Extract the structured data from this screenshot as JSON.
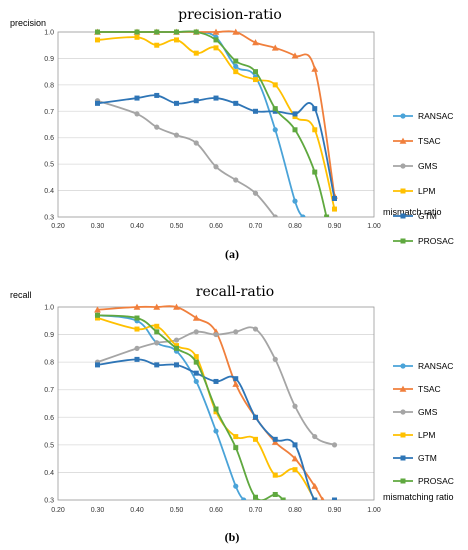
{
  "chart_data": [
    {
      "type": "line",
      "title": "precision-ratio",
      "panel_label": "(a)",
      "ylabel": "precision",
      "xlabel": "mismatch ratio",
      "xlim": [
        0.2,
        1.0
      ],
      "ylim": [
        0.3,
        1.0
      ],
      "xticks": [
        "0.20",
        "0.30",
        "0.40",
        "0.50",
        "0.60",
        "0.70",
        "0.80",
        "0.90",
        "1.00"
      ],
      "yticks": [
        "0.3",
        "0.4",
        "0.5",
        "0.6",
        "0.7",
        "0.8",
        "0.9",
        "1.0"
      ],
      "grid": "horizontal",
      "legend_position": "right",
      "series": [
        {
          "name": "RANSAC",
          "color": "#4aa3d8",
          "marker": "circle",
          "x": [
            0.3,
            0.4,
            0.45,
            0.5,
            0.55,
            0.6,
            0.65,
            0.7,
            0.75,
            0.8,
            0.82
          ],
          "y": [
            1.0,
            1.0,
            1.0,
            1.0,
            1.0,
            0.98,
            0.87,
            0.83,
            0.63,
            0.36,
            0.3
          ]
        },
        {
          "name": "TSAC",
          "color": "#f07f3c",
          "marker": "triangle",
          "x": [
            0.3,
            0.4,
            0.45,
            0.5,
            0.55,
            0.6,
            0.65,
            0.7,
            0.75,
            0.8,
            0.85,
            0.9
          ],
          "y": [
            1.0,
            1.0,
            1.0,
            1.0,
            1.0,
            1.0,
            1.0,
            0.96,
            0.94,
            0.91,
            0.86,
            0.38
          ]
        },
        {
          "name": "GMS",
          "color": "#a5a5a5",
          "marker": "circle",
          "x": [
            0.3,
            0.4,
            0.45,
            0.5,
            0.55,
            0.6,
            0.65,
            0.7,
            0.75
          ],
          "y": [
            0.74,
            0.69,
            0.64,
            0.61,
            0.58,
            0.49,
            0.44,
            0.39,
            0.3
          ]
        },
        {
          "name": "LPM",
          "color": "#ffc000",
          "marker": "square",
          "x": [
            0.3,
            0.4,
            0.45,
            0.5,
            0.55,
            0.6,
            0.65,
            0.7,
            0.75,
            0.8,
            0.85,
            0.9
          ],
          "y": [
            0.97,
            0.98,
            0.95,
            0.97,
            0.92,
            0.94,
            0.85,
            0.82,
            0.8,
            0.68,
            0.63,
            0.33
          ]
        },
        {
          "name": "GTM",
          "color": "#2e75b6",
          "marker": "square",
          "x": [
            0.3,
            0.4,
            0.45,
            0.5,
            0.55,
            0.6,
            0.65,
            0.7,
            0.75,
            0.8,
            0.85,
            0.9
          ],
          "y": [
            0.73,
            0.75,
            0.76,
            0.73,
            0.74,
            0.75,
            0.73,
            0.7,
            0.7,
            0.69,
            0.71,
            0.37
          ]
        },
        {
          "name": "PROSAC",
          "color": "#5fa83f",
          "marker": "square",
          "x": [
            0.3,
            0.4,
            0.45,
            0.5,
            0.55,
            0.6,
            0.65,
            0.7,
            0.75,
            0.8,
            0.85,
            0.88
          ],
          "y": [
            1.0,
            1.0,
            1.0,
            1.0,
            1.0,
            0.97,
            0.89,
            0.85,
            0.71,
            0.63,
            0.47,
            0.3
          ]
        }
      ]
    },
    {
      "type": "line",
      "title": "recall-ratio",
      "panel_label": "(b)",
      "ylabel": "recall",
      "xlabel": "mismatching ratio",
      "xlim": [
        0.2,
        1.0
      ],
      "ylim": [
        0.3,
        1.0
      ],
      "xticks": [
        "0.20",
        "0.30",
        "0.40",
        "0.50",
        "0.60",
        "0.70",
        "0.80",
        "0.90",
        "1.00"
      ],
      "yticks": [
        "0.3",
        "0.4",
        "0.5",
        "0.6",
        "0.7",
        "0.8",
        "0.9",
        "1.0"
      ],
      "grid": "horizontal",
      "legend_position": "right",
      "series": [
        {
          "name": "RANSAC",
          "color": "#4aa3d8",
          "marker": "circle",
          "x": [
            0.3,
            0.4,
            0.45,
            0.5,
            0.55,
            0.6,
            0.65,
            0.67
          ],
          "y": [
            0.97,
            0.95,
            0.87,
            0.84,
            0.73,
            0.55,
            0.35,
            0.3
          ]
        },
        {
          "name": "TSAC",
          "color": "#f07f3c",
          "marker": "triangle",
          "x": [
            0.3,
            0.4,
            0.45,
            0.5,
            0.55,
            0.6,
            0.65,
            0.7,
            0.75,
            0.8,
            0.85,
            0.87
          ],
          "y": [
            0.99,
            1.0,
            1.0,
            1.0,
            0.96,
            0.91,
            0.72,
            0.6,
            0.51,
            0.45,
            0.35,
            0.3
          ]
        },
        {
          "name": "GMS",
          "color": "#a5a5a5",
          "marker": "circle",
          "x": [
            0.3,
            0.4,
            0.45,
            0.5,
            0.55,
            0.6,
            0.65,
            0.7,
            0.75,
            0.8,
            0.85,
            0.9
          ],
          "y": [
            0.8,
            0.85,
            0.87,
            0.88,
            0.91,
            0.9,
            0.91,
            0.92,
            0.81,
            0.64,
            0.53,
            0.5
          ]
        },
        {
          "name": "LPM",
          "color": "#ffc000",
          "marker": "square",
          "x": [
            0.3,
            0.4,
            0.45,
            0.5,
            0.55,
            0.6,
            0.65,
            0.7,
            0.75,
            0.8,
            0.85
          ],
          "y": [
            0.96,
            0.92,
            0.93,
            0.86,
            0.82,
            0.62,
            0.53,
            0.52,
            0.39,
            0.41,
            0.3
          ]
        },
        {
          "name": "GTM",
          "color": "#2e75b6",
          "marker": "square",
          "x": [
            0.3,
            0.4,
            0.45,
            0.5,
            0.55,
            0.6,
            0.65,
            0.7,
            0.75,
            0.8,
            0.85,
            0.9
          ],
          "y": [
            0.79,
            0.81,
            0.79,
            0.79,
            0.76,
            0.73,
            0.74,
            0.6,
            0.52,
            0.5,
            0.3,
            0.3
          ]
        },
        {
          "name": "PROSAC",
          "color": "#5fa83f",
          "marker": "square",
          "x": [
            0.3,
            0.4,
            0.45,
            0.5,
            0.55,
            0.6,
            0.65,
            0.7,
            0.75,
            0.77
          ],
          "y": [
            0.97,
            0.96,
            0.91,
            0.85,
            0.8,
            0.63,
            0.49,
            0.31,
            0.32,
            0.3
          ]
        }
      ]
    }
  ]
}
